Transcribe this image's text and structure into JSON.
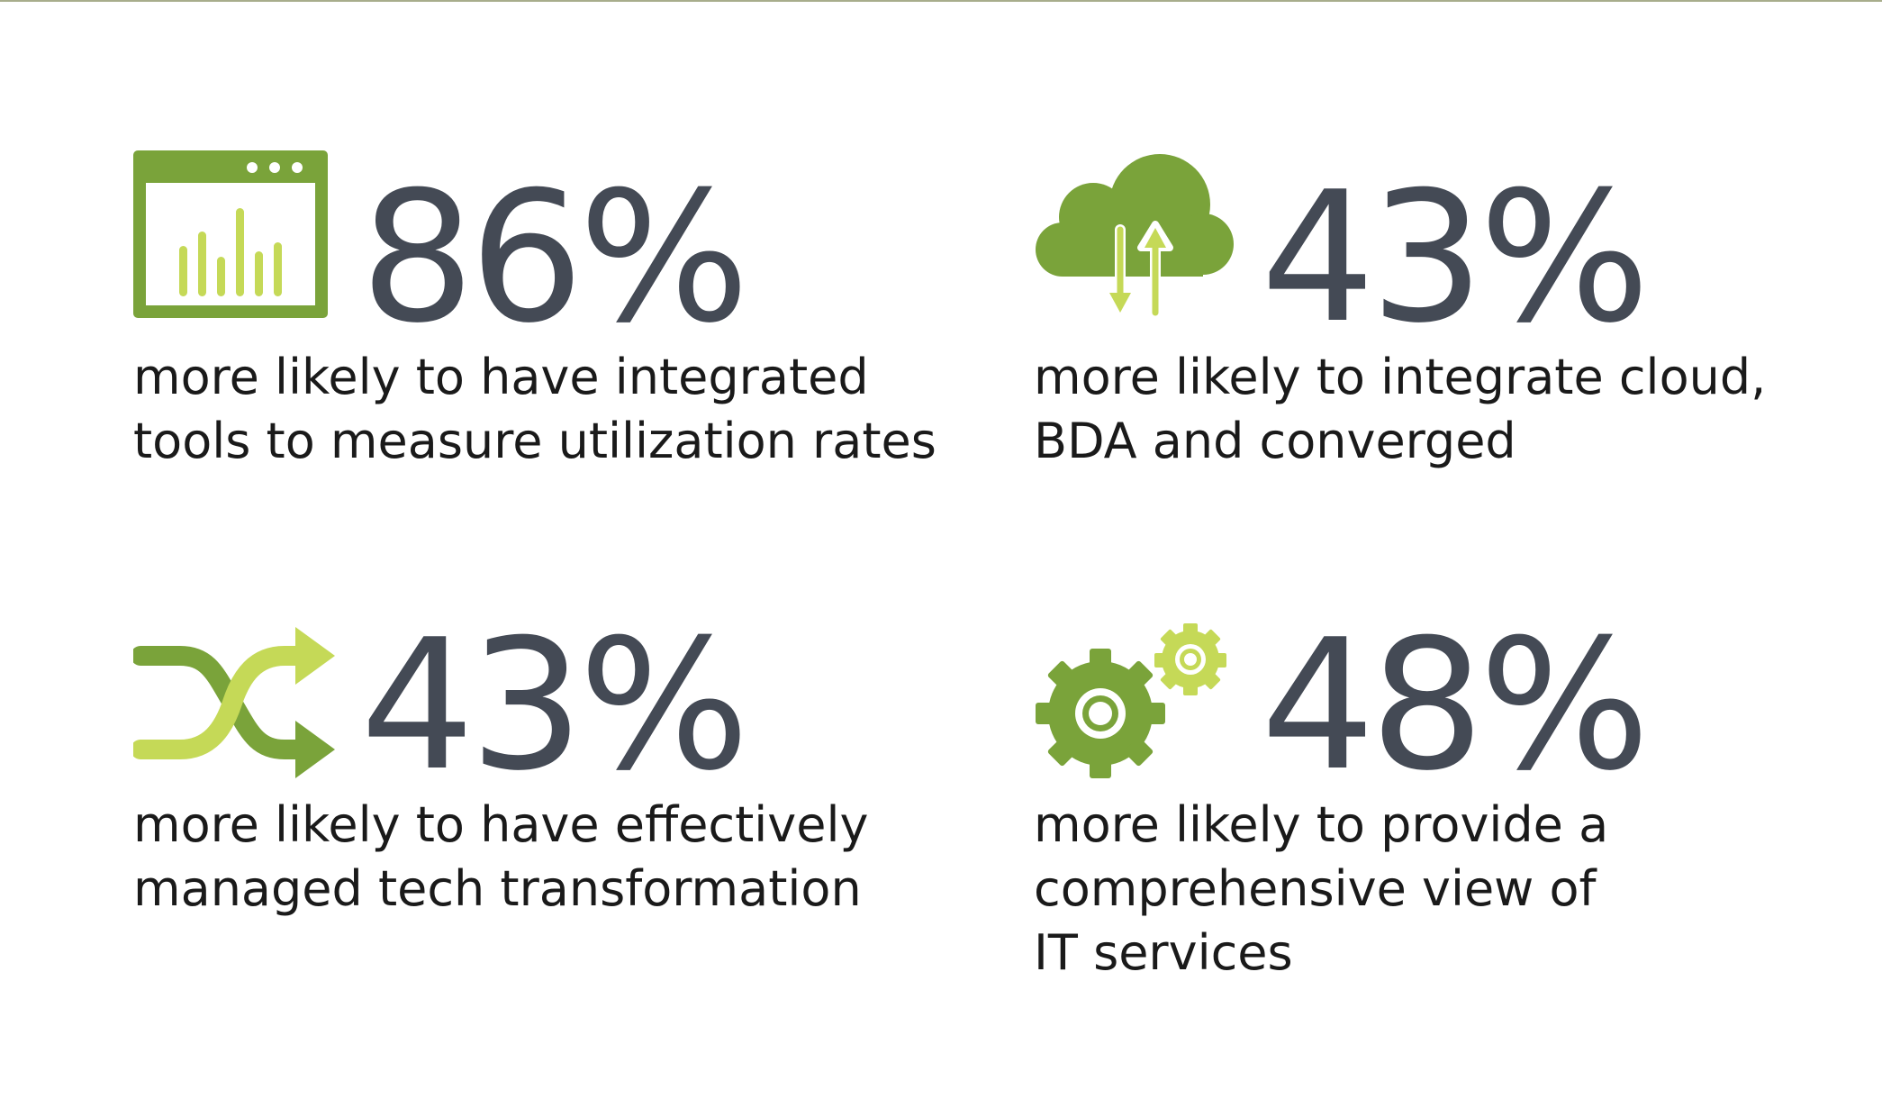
{
  "colors": {
    "dark_green": "#7aa33a",
    "light_green": "#c5d957",
    "number_gray": "#444a55",
    "text": "#1a1a1a"
  },
  "stats": [
    {
      "icon": "dashboard-chart-icon",
      "value": "86%",
      "lines": [
        "more likely to have integrated",
        "tools to measure utilization rates"
      ]
    },
    {
      "icon": "cloud-sync-icon",
      "value": "43%",
      "lines": [
        "more likely to integrate cloud,",
        "BDA and converged"
      ]
    },
    {
      "icon": "shuffle-arrows-icon",
      "value": "43%",
      "lines": [
        "more likely to have effectively",
        "managed tech transformation"
      ]
    },
    {
      "icon": "gears-icon",
      "value": "48%",
      "lines": [
        "more likely to provide a",
        "comprehensive view of",
        "IT services"
      ]
    }
  ]
}
